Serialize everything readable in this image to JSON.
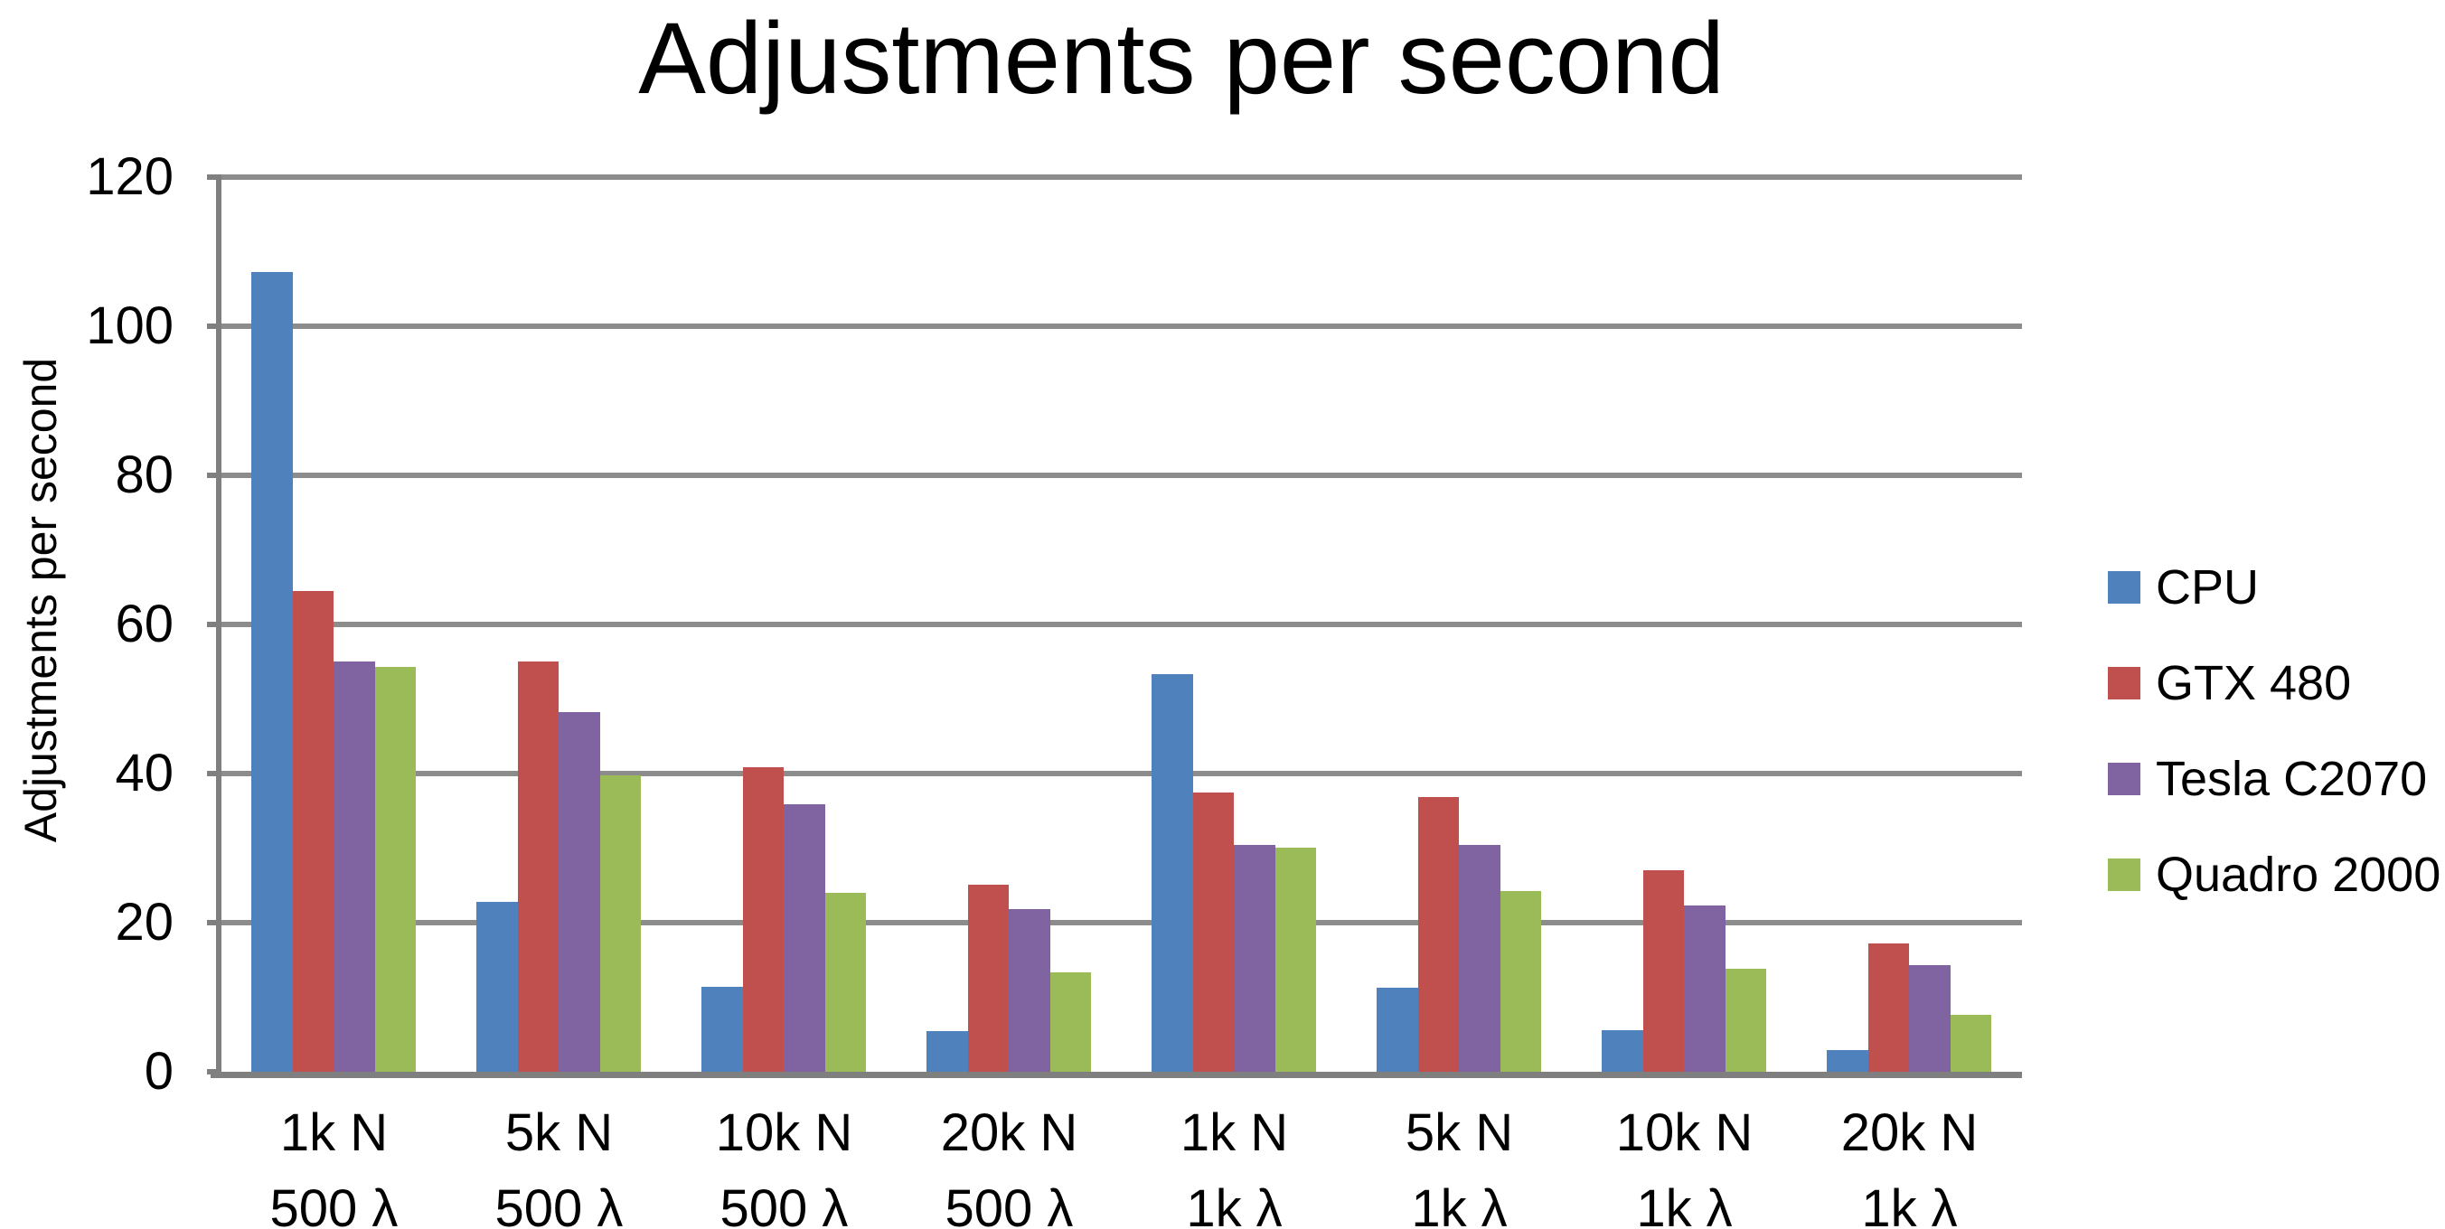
{
  "chart_data": {
    "type": "bar",
    "title": "Adjustments per second",
    "ylabel": "Adjustments per second",
    "xlabel": "",
    "ylim": [
      0,
      120
    ],
    "ytick_interval": 20,
    "yticks": [
      "120",
      "100",
      "80",
      "60",
      "40",
      "20",
      "0"
    ],
    "grid": true,
    "legend_position": "right",
    "categories": [
      {
        "top": "1k N",
        "bottom": "500 λ"
      },
      {
        "top": "5k N",
        "bottom": "500 λ"
      },
      {
        "top": "10k N",
        "bottom": "500 λ"
      },
      {
        "top": "20k N",
        "bottom": "500 λ"
      },
      {
        "top": "1k N",
        "bottom": "1k λ"
      },
      {
        "top": "5k N",
        "bottom": "1k λ"
      },
      {
        "top": "10k N",
        "bottom": "1k λ"
      },
      {
        "top": "20k N",
        "bottom": "1k λ"
      }
    ],
    "series": [
      {
        "name": "CPU",
        "color": "#4F81BD",
        "values": [
          107.3,
          22.8,
          11.4,
          5.5,
          53.3,
          11.3,
          5.6,
          2.9
        ]
      },
      {
        "name": "GTX 480",
        "color": "#C0504D",
        "values": [
          64.5,
          55.0,
          40.9,
          25.1,
          37.5,
          36.9,
          27.0,
          17.2
        ]
      },
      {
        "name": "Tesla C2070",
        "color": "#8064A2",
        "values": [
          55.0,
          48.2,
          35.9,
          21.8,
          30.4,
          30.4,
          22.3,
          14.3
        ]
      },
      {
        "name": "Quadro 2000",
        "color": "#9BBB59",
        "values": [
          54.3,
          39.8,
          24.0,
          13.3,
          30.1,
          24.2,
          13.8,
          7.6
        ]
      }
    ],
    "colors": {
      "gridline": "#8c8c8c",
      "axis": "#7f7f7f",
      "text": "#000000",
      "background": "#ffffff"
    }
  }
}
